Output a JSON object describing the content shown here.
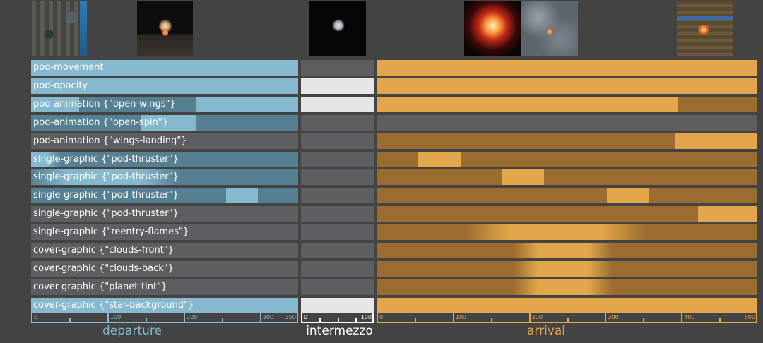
{
  "colors": {
    "departure": "#86b8ce",
    "departure_dim": "#567f92",
    "departure_off": "#5e5e60",
    "intermezzo": "#e6e6e6",
    "intermezzo_off": "#5e5e60",
    "arrival": "#e3a64a",
    "arrival_dim": "#9b6c30",
    "arrival_off": "#5e5e60",
    "background": "#434343"
  },
  "thumbnails": [
    {
      "name": "factory-thumbnail",
      "style": "factory"
    },
    {
      "name": "pod-launch-thumbnail",
      "style": "launch"
    },
    {
      "name": "pod-space-thumbnail",
      "style": "space"
    },
    {
      "name": "reentry-flames-thumbnail",
      "style": "flames"
    },
    {
      "name": "clouds-thumbnail",
      "style": "clouds"
    },
    {
      "name": "landing-site-thumbnail",
      "style": "landing"
    }
  ],
  "rows": [
    {
      "label": "pod-movement",
      "departure": {
        "base": "on",
        "segs": []
      },
      "intermezzo": "off",
      "arrival": {
        "base": "on",
        "segs": []
      }
    },
    {
      "label": "pod-opacity",
      "departure": {
        "base": "on",
        "segs": []
      },
      "intermezzo": "on",
      "arrival": {
        "base": "on",
        "segs": []
      }
    },
    {
      "label": "pod-animation {\"open-wings\"}",
      "departure": {
        "base": "on",
        "segs": [
          {
            "from": 0.18,
            "to": 0.62,
            "state": "dim"
          }
        ]
      },
      "intermezzo": "on",
      "arrival": {
        "base": "on",
        "segs": [
          {
            "from": 0.79,
            "to": 1.0,
            "state": "dim"
          }
        ]
      }
    },
    {
      "label": "pod-animation {\"open-spin\"}",
      "departure": {
        "base": "dim",
        "segs": [
          {
            "from": 0.41,
            "to": 0.62,
            "state": "on"
          }
        ]
      },
      "intermezzo": "off",
      "arrival": {
        "base": "off",
        "segs": []
      }
    },
    {
      "label": "pod-animation {\"wings-landing\"}",
      "departure": {
        "base": "off",
        "segs": []
      },
      "intermezzo": "off",
      "arrival": {
        "base": "dim",
        "segs": [
          {
            "from": 0.785,
            "to": 1.0,
            "state": "on"
          }
        ]
      }
    },
    {
      "label": "single-graphic {\"pod-thruster\"}",
      "departure": {
        "base": "dim",
        "segs": [
          {
            "from": 0.0,
            "to": 0.11,
            "state": "on",
            "fade": "right"
          }
        ]
      },
      "intermezzo": "off",
      "arrival": {
        "base": "dim",
        "segs": [
          {
            "from": 0.11,
            "to": 0.22,
            "state": "on"
          }
        ]
      }
    },
    {
      "label": "single-graphic {\"pod-thruster\"}",
      "departure": {
        "base": "dim",
        "segs": [
          {
            "from": 0.0,
            "to": 0.55,
            "state": "on",
            "fade": "both"
          }
        ]
      },
      "intermezzo": "off",
      "arrival": {
        "base": "dim",
        "segs": [
          {
            "from": 0.33,
            "to": 0.44,
            "state": "on"
          }
        ]
      }
    },
    {
      "label": "single-graphic {\"pod-thruster\"}",
      "departure": {
        "base": "dim",
        "segs": [
          {
            "from": 0.73,
            "to": 0.85,
            "state": "on"
          }
        ]
      },
      "intermezzo": "off",
      "arrival": {
        "base": "dim",
        "segs": [
          {
            "from": 0.605,
            "to": 0.715,
            "state": "on"
          }
        ]
      }
    },
    {
      "label": "single-graphic {\"pod-thruster\"}",
      "departure": {
        "base": "off",
        "segs": []
      },
      "intermezzo": "off",
      "arrival": {
        "base": "dim",
        "segs": [
          {
            "from": 0.845,
            "to": 1.0,
            "state": "on"
          }
        ]
      }
    },
    {
      "label": "single-graphic {\"reentry-flames\"}",
      "departure": {
        "base": "off",
        "segs": []
      },
      "intermezzo": "off",
      "arrival": {
        "base": "dim",
        "segs": [
          {
            "from": 0.23,
            "to": 0.71,
            "state": "on",
            "fade": "both"
          }
        ]
      }
    },
    {
      "label": "cover-graphic {\"clouds-front\"}",
      "departure": {
        "base": "off",
        "segs": []
      },
      "intermezzo": "off",
      "arrival": {
        "base": "dim",
        "segs": [
          {
            "from": 0.36,
            "to": 0.62,
            "state": "on",
            "fade": "both"
          }
        ]
      }
    },
    {
      "label": "cover-graphic {\"clouds-back\"}",
      "departure": {
        "base": "off",
        "segs": []
      },
      "intermezzo": "off",
      "arrival": {
        "base": "dim",
        "segs": [
          {
            "from": 0.36,
            "to": 0.62,
            "state": "on",
            "fade": "both"
          }
        ]
      }
    },
    {
      "label": "cover-graphic {\"planet-tint\"}",
      "departure": {
        "base": "off",
        "segs": []
      },
      "intermezzo": "off",
      "arrival": {
        "base": "dim",
        "segs": [
          {
            "from": 0.36,
            "to": 0.62,
            "state": "on",
            "fade": "both"
          }
        ]
      }
    },
    {
      "label": "cover-graphic {\"star-background\"}",
      "departure": {
        "base": "on",
        "segs": []
      },
      "intermezzo": "on",
      "arrival": {
        "base": "on",
        "segs": []
      }
    }
  ],
  "axes": {
    "departure": {
      "min": 0,
      "max": 350,
      "labels": [
        0,
        100,
        200,
        300,
        350
      ],
      "ticks": [
        0,
        50,
        100,
        150,
        200,
        250,
        300,
        350
      ]
    },
    "intermezzo": {
      "min": 0,
      "max": 100,
      "labels": [
        0,
        100
      ],
      "ticks": [
        0,
        25,
        50,
        75,
        100
      ]
    },
    "arrival": {
      "min": 0,
      "max": 500,
      "labels": [
        0,
        100,
        200,
        300,
        400,
        500
      ],
      "ticks": [
        0,
        50,
        100,
        150,
        200,
        250,
        300,
        350,
        400,
        450,
        500
      ]
    }
  },
  "section_labels": {
    "departure": "departure",
    "intermezzo": "intermezzo",
    "arrival": "arrival"
  }
}
